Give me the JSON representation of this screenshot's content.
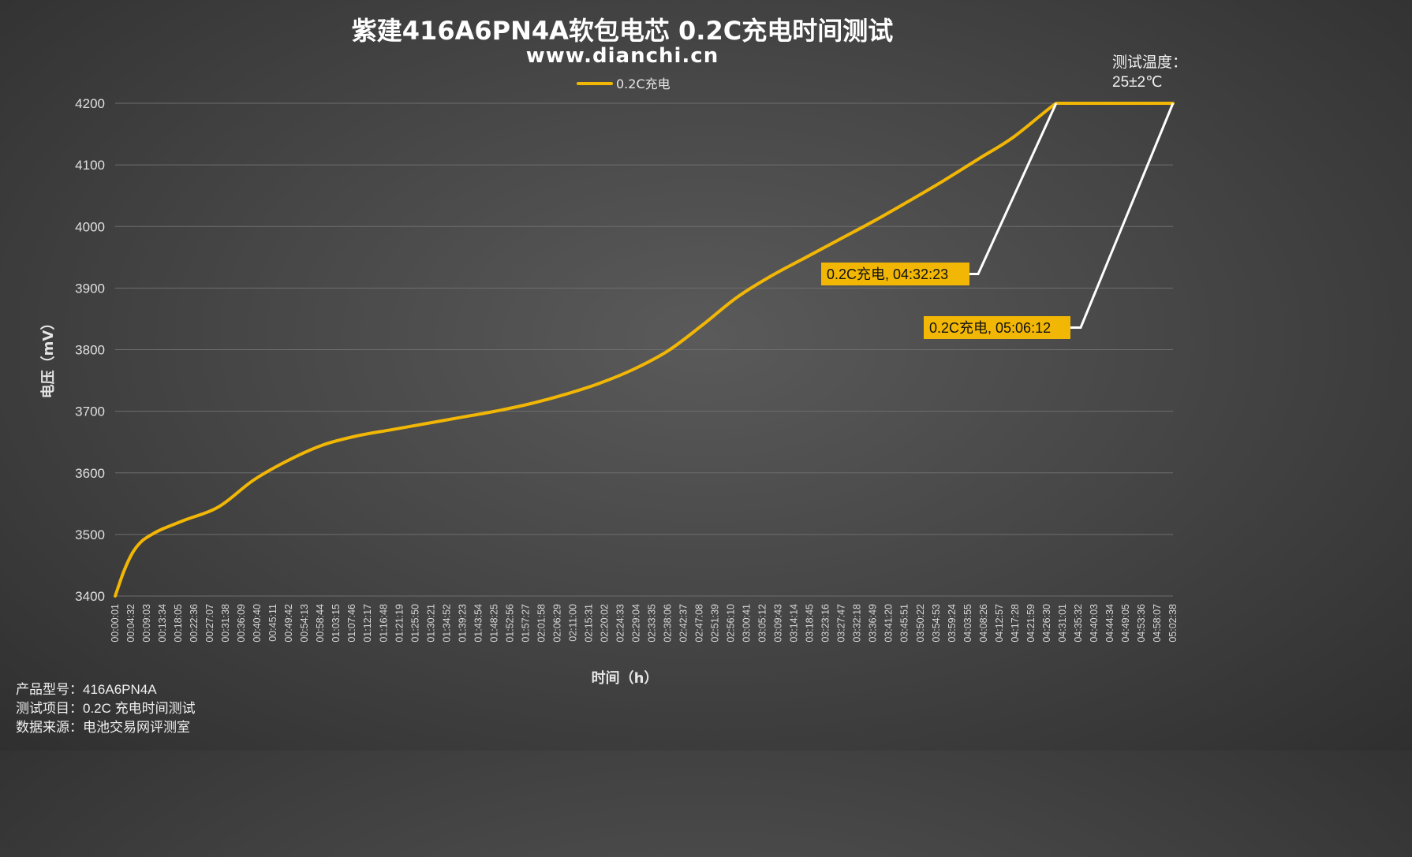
{
  "page": {
    "title": "紫建416A6PN4A软包电芯 0.2C充电时间测试",
    "subtitle": "www.dianchi.cn",
    "temp_label": "测试温度：",
    "temp_value": "25±2℃",
    "footer": {
      "model": "产品型号：416A6PN4A",
      "test_item": "测试项目：0.2C 充电时间测试",
      "source": "数据来源：电池交易网评测室"
    }
  },
  "colors": {
    "series": "#f2b705",
    "grid": "#6e6e6e",
    "leader": "#ffffff",
    "label_bg": "#f2b705"
  },
  "chart_data": {
    "type": "line",
    "xlabel": "时间（h）",
    "ylabel": "电压（mV）",
    "ylim": [
      3400,
      4200
    ],
    "yticks": [
      3400,
      3500,
      3600,
      3700,
      3800,
      3900,
      4000,
      4100,
      4200
    ],
    "grid": true,
    "legend": {
      "position": "top-center",
      "entries": [
        "0.2C充电"
      ]
    },
    "x_tick_labels": [
      "00:00:01",
      "00:04:32",
      "00:09:03",
      "00:13:34",
      "00:18:05",
      "00:22:36",
      "00:27:07",
      "00:31:38",
      "00:36:09",
      "00:40:40",
      "00:45:11",
      "00:49:42",
      "00:54:13",
      "00:58:44",
      "01:03:15",
      "01:07:46",
      "01:12:17",
      "01:16:48",
      "01:21:19",
      "01:25:50",
      "01:30:21",
      "01:34:52",
      "01:39:23",
      "01:43:54",
      "01:48:25",
      "01:52:56",
      "01:57:27",
      "02:01:58",
      "02:06:29",
      "02:11:00",
      "02:15:31",
      "02:20:02",
      "02:24:33",
      "02:29:04",
      "02:33:35",
      "02:38:06",
      "02:42:37",
      "02:47:08",
      "02:51:39",
      "02:56:10",
      "03:00:41",
      "03:05:12",
      "03:09:43",
      "03:14:14",
      "03:18:45",
      "03:23:16",
      "03:27:47",
      "03:32:18",
      "03:36:49",
      "03:41:20",
      "03:45:51",
      "03:50:22",
      "03:54:53",
      "03:59:24",
      "04:03:55",
      "04:08:26",
      "04:12:57",
      "04:17:28",
      "04:21:59",
      "04:26:30",
      "04:31:01",
      "04:35:32",
      "04:40:03",
      "04:44:34",
      "04:49:05",
      "04:53:36",
      "04:58:07",
      "05:02:38"
    ],
    "series": [
      {
        "name": "0.2C充电",
        "x_seconds": [
          1,
          150,
          300,
          450,
          600,
          800,
          1200,
          1800,
          2400,
          3000,
          3600,
          4200,
          4800,
          5400,
          6000,
          6600,
          7200,
          7800,
          8400,
          9000,
          9600,
          10200,
          10800,
          11400,
          12000,
          12600,
          13200,
          13800,
          14400,
          15000,
          15600,
          16343,
          16500,
          17000,
          17500,
          18000,
          18372
        ],
        "y_mv": [
          3400,
          3440,
          3470,
          3488,
          3498,
          3508,
          3523,
          3545,
          3588,
          3620,
          3645,
          3660,
          3670,
          3680,
          3690,
          3700,
          3712,
          3727,
          3745,
          3768,
          3798,
          3840,
          3885,
          3920,
          3950,
          3980,
          4010,
          4042,
          4075,
          4110,
          4145,
          4200,
          4200,
          4200,
          4200,
          4200,
          4200
        ]
      }
    ],
    "annotations": [
      {
        "label": "0.2C充电, 04:32:23",
        "x_seconds": 16343,
        "y_mv": 4200
      },
      {
        "label": "0.2C充电, 05:06:12",
        "x_seconds": 18372,
        "y_mv": 4200
      }
    ]
  }
}
